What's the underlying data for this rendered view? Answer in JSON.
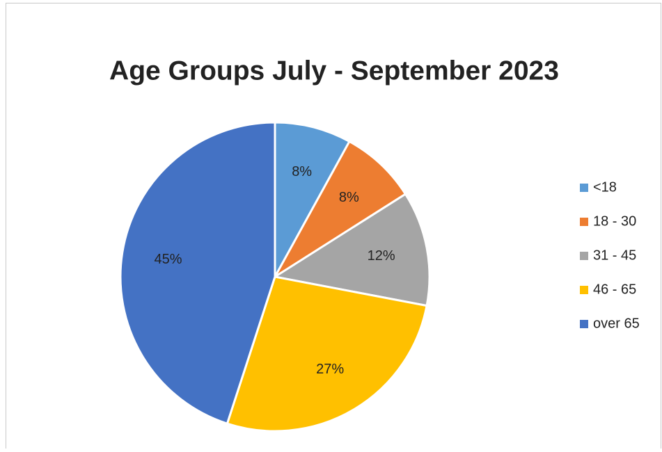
{
  "chart_data": {
    "type": "pie",
    "title": "Age Groups  July - September 2023",
    "categories": [
      "<18",
      "18 - 30",
      "31 - 45",
      "46 - 65",
      "over 65"
    ],
    "values": [
      8,
      8,
      12,
      27,
      45
    ],
    "value_labels": [
      "8%",
      "8%",
      "12%",
      "27%",
      "45%"
    ],
    "colors": [
      "#5b9bd5",
      "#ed7d31",
      "#a5a5a5",
      "#ffc000",
      "#4472c4"
    ],
    "legend": "right"
  }
}
